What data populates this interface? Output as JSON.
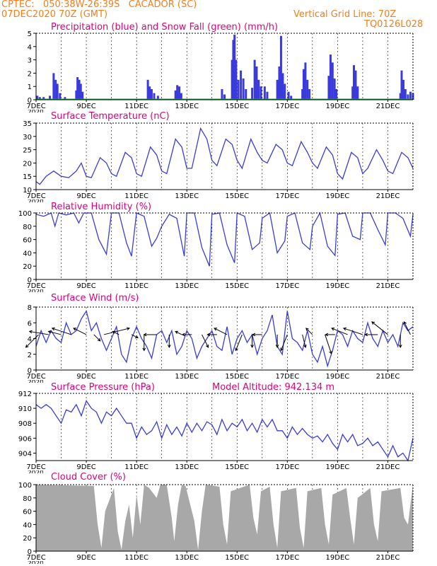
{
  "header": {
    "line1": "CPTEC:   050:38W-26:39S   CACADOR (SC)",
    "line2": "07DEC2020 70Z (GMT)",
    "vgrid": "Vertical Grid Line: 70Z",
    "code": "TQ0126L028",
    "altitude": "Model Altitude: 942.134 m"
  },
  "colors": {
    "header": "#f07f1e",
    "title": "#e0007a",
    "line": "#3b3bdc",
    "snow": "#1f9e3c",
    "cloud": "#a8a8a8"
  },
  "x_axis": {
    "start": "07DEC2020 00Z",
    "end": "22DEC2020 00Z",
    "tick_labels": [
      "7DEC",
      "9DEC",
      "11DEC",
      "13DEC",
      "15DEC",
      "17DEC",
      "19DEC",
      "21DEC"
    ],
    "tick_days": [
      7,
      9,
      11,
      13,
      15,
      17,
      19,
      21
    ],
    "clipped_year_label": "2020"
  },
  "chart_data": [
    {
      "id": "precip",
      "type": "bar",
      "title": "Precipitation (blue) and Snow Fall (green) (mm/h)",
      "ylim": [
        0,
        5
      ],
      "yticks": [
        0,
        1,
        2,
        3,
        4,
        5
      ],
      "grid": false,
      "series": [
        {
          "name": "Precipitation",
          "color": "#3b3bdc",
          "events": [
            {
              "x": 7.05,
              "y": 0.3
            },
            {
              "x": 7.15,
              "y": 0.2
            },
            {
              "x": 7.3,
              "y": 0.2
            },
            {
              "x": 7.55,
              "y": 0.3
            },
            {
              "x": 7.7,
              "y": 2.0
            },
            {
              "x": 7.78,
              "y": 1.5
            },
            {
              "x": 7.85,
              "y": 1.2
            },
            {
              "x": 7.95,
              "y": 0.5
            },
            {
              "x": 8.15,
              "y": 0.2
            },
            {
              "x": 8.6,
              "y": 0.7
            },
            {
              "x": 8.65,
              "y": 1.7
            },
            {
              "x": 8.72,
              "y": 1.5
            },
            {
              "x": 8.78,
              "y": 1.2
            },
            {
              "x": 8.85,
              "y": 0.6
            },
            {
              "x": 11.45,
              "y": 1.5
            },
            {
              "x": 11.52,
              "y": 1.0
            },
            {
              "x": 11.6,
              "y": 0.8
            },
            {
              "x": 11.7,
              "y": 0.5
            },
            {
              "x": 11.85,
              "y": 0.3
            },
            {
              "x": 12.55,
              "y": 0.7
            },
            {
              "x": 12.62,
              "y": 1.1
            },
            {
              "x": 12.7,
              "y": 1.0
            },
            {
              "x": 12.78,
              "y": 0.5
            },
            {
              "x": 14.4,
              "y": 0.8
            },
            {
              "x": 14.5,
              "y": 0.4
            },
            {
              "x": 14.8,
              "y": 3.0
            },
            {
              "x": 14.85,
              "y": 4.5
            },
            {
              "x": 14.9,
              "y": 4.9
            },
            {
              "x": 14.96,
              "y": 3.0
            },
            {
              "x": 15.05,
              "y": 1.5
            },
            {
              "x": 15.15,
              "y": 2.2
            },
            {
              "x": 15.25,
              "y": 1.6
            },
            {
              "x": 15.35,
              "y": 0.8
            },
            {
              "x": 15.6,
              "y": 0.9
            },
            {
              "x": 15.7,
              "y": 3.0
            },
            {
              "x": 15.78,
              "y": 2.5
            },
            {
              "x": 15.86,
              "y": 1.5
            },
            {
              "x": 15.95,
              "y": 1.0
            },
            {
              "x": 16.1,
              "y": 1.0
            },
            {
              "x": 16.2,
              "y": 0.6
            },
            {
              "x": 16.6,
              "y": 1.5
            },
            {
              "x": 16.68,
              "y": 2.5
            },
            {
              "x": 16.75,
              "y": 4.8
            },
            {
              "x": 16.82,
              "y": 2.0
            },
            {
              "x": 16.9,
              "y": 1.2
            },
            {
              "x": 17.05,
              "y": 0.6
            },
            {
              "x": 17.15,
              "y": 0.3
            },
            {
              "x": 17.6,
              "y": 0.8
            },
            {
              "x": 17.65,
              "y": 2.3
            },
            {
              "x": 17.72,
              "y": 2.8
            },
            {
              "x": 17.8,
              "y": 1.5
            },
            {
              "x": 17.88,
              "y": 0.8
            },
            {
              "x": 18.65,
              "y": 1.8
            },
            {
              "x": 18.72,
              "y": 3.4
            },
            {
              "x": 18.8,
              "y": 2.8
            },
            {
              "x": 18.88,
              "y": 1.6
            },
            {
              "x": 18.95,
              "y": 0.8
            },
            {
              "x": 19.6,
              "y": 1.0
            },
            {
              "x": 19.65,
              "y": 2.6
            },
            {
              "x": 19.72,
              "y": 2.2
            },
            {
              "x": 19.8,
              "y": 1.0
            },
            {
              "x": 21.5,
              "y": 0.5
            },
            {
              "x": 21.55,
              "y": 2.2
            },
            {
              "x": 21.62,
              "y": 1.5
            },
            {
              "x": 21.7,
              "y": 0.8
            },
            {
              "x": 21.8,
              "y": 0.4
            },
            {
              "x": 21.9,
              "y": 0.6
            },
            {
              "x": 22.0,
              "y": 0.5
            }
          ]
        },
        {
          "name": "Snow Fall",
          "color": "#1f9e3c",
          "value": 0
        }
      ]
    },
    {
      "id": "temperature",
      "type": "line",
      "title": "Surface Temperature (nC)",
      "ylim": [
        10,
        35
      ],
      "yticks": [
        10,
        15,
        20,
        25,
        30,
        35
      ],
      "grid": false,
      "x": [
        7.0,
        7.15,
        7.4,
        7.7,
        8.0,
        8.3,
        8.6,
        8.8,
        9.0,
        9.2,
        9.55,
        9.8,
        10.0,
        10.2,
        10.55,
        10.8,
        11.0,
        11.2,
        11.55,
        11.8,
        12.0,
        12.2,
        12.55,
        12.8,
        13.0,
        13.2,
        13.55,
        13.8,
        14.0,
        14.2,
        14.55,
        14.8,
        15.0,
        15.2,
        15.55,
        15.8,
        16.0,
        16.2,
        16.55,
        16.8,
        17.0,
        17.2,
        17.55,
        17.8,
        18.0,
        18.2,
        18.55,
        18.8,
        19.0,
        19.2,
        19.55,
        19.8,
        20.0,
        20.2,
        20.55,
        20.8,
        21.0,
        21.2,
        21.55,
        21.8,
        22.0
      ],
      "y": [
        13,
        12,
        15,
        17,
        15,
        14.5,
        17,
        20,
        15,
        14.5,
        22,
        20,
        16,
        15,
        24,
        22,
        16,
        15,
        26,
        23,
        17,
        16,
        29,
        26,
        18,
        18,
        33,
        29,
        21,
        19,
        29,
        27,
        21,
        18,
        29,
        24,
        21,
        20,
        27,
        25,
        20,
        19,
        28,
        24,
        20,
        18,
        26,
        23,
        16,
        14,
        24,
        22,
        16,
        18,
        25,
        21,
        17,
        16,
        24,
        22,
        18
      ]
    },
    {
      "id": "humidity",
      "type": "line",
      "title": "Relative Humidity (%)",
      "ylim": [
        0,
        100
      ],
      "yticks": [
        0,
        20,
        40,
        60,
        80,
        100
      ],
      "grid": false,
      "x": [
        7.0,
        7.3,
        7.6,
        7.75,
        7.9,
        8.2,
        8.5,
        8.7,
        8.9,
        9.2,
        9.5,
        9.8,
        10.0,
        10.3,
        10.6,
        10.8,
        11.0,
        11.3,
        11.6,
        11.8,
        12.0,
        12.3,
        12.6,
        12.9,
        13.0,
        13.3,
        13.6,
        13.9,
        14.0,
        14.3,
        14.6,
        14.9,
        15.0,
        15.3,
        15.6,
        15.9,
        16.0,
        16.3,
        16.6,
        16.9,
        17.0,
        17.3,
        17.6,
        17.9,
        18.0,
        18.3,
        18.6,
        18.9,
        19.0,
        19.3,
        19.6,
        19.9,
        20.0,
        20.3,
        20.6,
        20.9,
        21.0,
        21.3,
        21.6,
        21.9,
        22.0
      ],
      "y": [
        98,
        95,
        100,
        80,
        100,
        97,
        100,
        85,
        100,
        100,
        60,
        38,
        100,
        100,
        55,
        35,
        100,
        95,
        50,
        62,
        80,
        98,
        92,
        35,
        100,
        100,
        48,
        20,
        98,
        100,
        52,
        25,
        100,
        95,
        45,
        55,
        92,
        100,
        40,
        58,
        95,
        100,
        55,
        45,
        80,
        100,
        50,
        36,
        98,
        100,
        65,
        60,
        100,
        100,
        75,
        52,
        100,
        100,
        92,
        65,
        98
      ]
    },
    {
      "id": "wind",
      "type": "line",
      "title": "Surface Wind (m/s)",
      "ylim": [
        0,
        8
      ],
      "yticks": [
        0,
        2,
        4,
        6,
        8
      ],
      "grid": false,
      "x": [
        7.0,
        7.2,
        7.4,
        7.6,
        7.8,
        8.0,
        8.2,
        8.4,
        8.6,
        8.8,
        9.0,
        9.2,
        9.4,
        9.6,
        9.8,
        10.0,
        10.2,
        10.4,
        10.6,
        10.8,
        11.0,
        11.2,
        11.4,
        11.6,
        11.8,
        12.0,
        12.2,
        12.4,
        12.6,
        12.8,
        13.0,
        13.2,
        13.4,
        13.6,
        13.8,
        14.0,
        14.2,
        14.4,
        14.6,
        14.8,
        15.0,
        15.2,
        15.4,
        15.6,
        15.8,
        16.0,
        16.2,
        16.4,
        16.6,
        16.8,
        17.0,
        17.2,
        17.4,
        17.6,
        17.8,
        18.0,
        18.2,
        18.4,
        18.6,
        18.8,
        19.0,
        19.2,
        19.4,
        19.6,
        19.8,
        20.0,
        20.2,
        20.4,
        20.6,
        20.8,
        21.0,
        21.2,
        21.4,
        21.6,
        21.8,
        22.0
      ],
      "y": [
        3,
        5,
        3.5,
        5,
        4,
        3.5,
        6,
        4.5,
        5,
        6.5,
        7.5,
        5,
        6,
        4,
        2.5,
        4,
        5.5,
        2,
        1,
        4,
        5.5,
        4,
        3,
        1.5,
        4.5,
        5,
        3.5,
        5,
        2,
        3,
        5,
        4,
        1.5,
        3,
        4,
        5,
        3,
        2.5,
        5.5,
        2,
        4,
        5,
        3.5,
        4.5,
        2,
        4,
        5,
        7,
        3,
        2,
        7.5,
        4,
        3.5,
        2.5,
        5,
        2,
        1,
        3,
        0.5,
        2.5,
        5,
        4.5,
        3,
        5,
        4,
        3.5,
        6,
        4,
        3,
        5,
        3.5,
        4.5,
        3,
        6,
        5,
        5.5
      ],
      "vectors": [
        {
          "x": 7.1,
          "u": -2,
          "v": -2
        },
        {
          "x": 7.5,
          "u": -3,
          "v": 0.5
        },
        {
          "x": 8.0,
          "u": -2,
          "v": 0.5
        },
        {
          "x": 8.4,
          "u": -3,
          "v": 1
        },
        {
          "x": 9.0,
          "u": -2,
          "v": 1
        },
        {
          "x": 9.3,
          "u": 1,
          "v": -1
        },
        {
          "x": 9.7,
          "u": 4,
          "v": 1
        },
        {
          "x": 10.3,
          "u": -1,
          "v": 0.5
        },
        {
          "x": 10.8,
          "u": 1,
          "v": -0.5
        },
        {
          "x": 11.3,
          "u": 0,
          "v": -2.5
        },
        {
          "x": 11.8,
          "u": -2,
          "v": 0
        },
        {
          "x": 12.3,
          "u": 0,
          "v": -2
        },
        {
          "x": 12.8,
          "u": -1,
          "v": 0.5
        },
        {
          "x": 13.2,
          "u": -1.5,
          "v": 0
        },
        {
          "x": 13.6,
          "u": 1,
          "v": -2
        },
        {
          "x": 14.2,
          "u": -1.5,
          "v": 0
        },
        {
          "x": 14.6,
          "u": -2,
          "v": 1
        },
        {
          "x": 15.2,
          "u": -1,
          "v": -2.5
        },
        {
          "x": 15.6,
          "u": 0,
          "v": -2
        },
        {
          "x": 16.0,
          "u": -1.5,
          "v": 0
        },
        {
          "x": 16.6,
          "u": 0,
          "v": -2
        },
        {
          "x": 17.0,
          "u": -1,
          "v": -2.5
        },
        {
          "x": 17.6,
          "u": 0.5,
          "v": -2
        },
        {
          "x": 18.0,
          "u": -1,
          "v": 1
        },
        {
          "x": 18.5,
          "u": 1,
          "v": -3
        },
        {
          "x": 18.9,
          "u": -1.5,
          "v": 0
        },
        {
          "x": 19.4,
          "u": -2.5,
          "v": 1
        },
        {
          "x": 20.0,
          "u": -3,
          "v": 1
        },
        {
          "x": 20.6,
          "u": -2,
          "v": 0
        },
        {
          "x": 21.0,
          "u": -2.5,
          "v": 2
        },
        {
          "x": 21.5,
          "u": 0,
          "v": -2
        },
        {
          "x": 21.9,
          "u": -1,
          "v": 2
        }
      ]
    },
    {
      "id": "pressure",
      "type": "line",
      "title": "Surface Pressure (hPa)",
      "ylim": [
        903,
        912
      ],
      "yticks": [
        904,
        906,
        908,
        910,
        912
      ],
      "grid": false,
      "x": [
        7.0,
        7.2,
        7.4,
        7.6,
        7.8,
        8.0,
        8.2,
        8.4,
        8.6,
        8.8,
        9.0,
        9.2,
        9.4,
        9.6,
        9.8,
        10.0,
        10.2,
        10.4,
        10.6,
        10.8,
        11.0,
        11.2,
        11.4,
        11.6,
        11.8,
        12.0,
        12.2,
        12.4,
        12.6,
        12.8,
        13.0,
        13.2,
        13.4,
        13.6,
        13.8,
        14.0,
        14.2,
        14.4,
        14.6,
        14.8,
        15.0,
        15.2,
        15.4,
        15.6,
        15.8,
        16.0,
        16.2,
        16.4,
        16.6,
        16.8,
        17.0,
        17.2,
        17.4,
        17.6,
        17.8,
        18.0,
        18.2,
        18.4,
        18.6,
        18.8,
        19.0,
        19.2,
        19.4,
        19.6,
        19.8,
        20.0,
        20.2,
        20.4,
        20.6,
        20.8,
        21.0,
        21.2,
        21.4,
        21.6,
        21.8,
        22.0
      ],
      "y": [
        910.5,
        910,
        910.5,
        910,
        909,
        908,
        909.8,
        909.5,
        910.5,
        909,
        911,
        910,
        909.5,
        908,
        909.5,
        909,
        910,
        909,
        908,
        908,
        906,
        907.5,
        906.5,
        907,
        908.2,
        906,
        907.8,
        906.5,
        907.5,
        906.3,
        908,
        906.8,
        908,
        907,
        908.2,
        907.8,
        906.5,
        908.5,
        907,
        908,
        907.5,
        908.5,
        907,
        908,
        906.8,
        908.5,
        907.5,
        908.5,
        907,
        907,
        906,
        907.5,
        906.5,
        907.3,
        906.5,
        906,
        906.3,
        905.5,
        906.5,
        905.3,
        904.5,
        906.5,
        905.5,
        906.5,
        905,
        905.3,
        906,
        905,
        905.5,
        904.5,
        903.5,
        905,
        903.5,
        904,
        903,
        906
      ]
    },
    {
      "id": "cloud",
      "type": "area",
      "title": "Cloud Cover (%)",
      "ylim": [
        0,
        100
      ],
      "yticks": [
        0,
        20,
        40,
        60,
        80,
        100
      ],
      "grid": false,
      "x": [
        7.0,
        9.3,
        9.45,
        9.6,
        9.75,
        10.1,
        10.25,
        10.4,
        10.55,
        10.7,
        10.85,
        11.0,
        11.15,
        11.3,
        11.5,
        11.8,
        11.95,
        12.2,
        12.4,
        12.5,
        12.65,
        12.8,
        12.95,
        13.3,
        13.45,
        13.6,
        13.75,
        14.3,
        14.45,
        14.6,
        14.75,
        15.5,
        15.65,
        15.8,
        15.95,
        16.3,
        16.45,
        16.6,
        16.75,
        17.35,
        17.5,
        17.65,
        17.8,
        18.35,
        18.5,
        18.65,
        18.8,
        19.35,
        19.5,
        19.65,
        19.8,
        20.3,
        20.45,
        20.6,
        20.75,
        21.5,
        21.65,
        21.8,
        22.0
      ],
      "y": [
        100,
        98,
        40,
        5,
        60,
        95,
        30,
        2,
        45,
        70,
        20,
        85,
        40,
        100,
        95,
        80,
        100,
        100,
        50,
        15,
        70,
        100,
        98,
        45,
        2,
        60,
        100,
        97,
        40,
        10,
        90,
        100,
        50,
        25,
        90,
        97,
        40,
        5,
        90,
        95,
        35,
        5,
        90,
        95,
        40,
        10,
        85,
        95,
        50,
        10,
        80,
        95,
        40,
        15,
        90,
        95,
        50,
        40,
        100
      ]
    }
  ]
}
